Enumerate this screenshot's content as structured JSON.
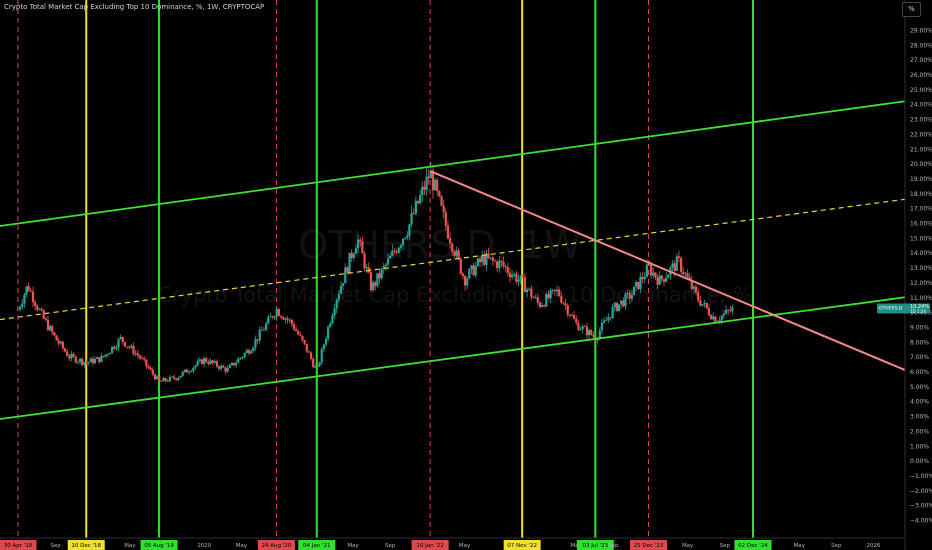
{
  "header": {
    "title": "Crypto Total Market Cap Excluding Top 10 Dominance, %, 1W, CRYPTOCAP",
    "scale_button": "%"
  },
  "watermark": {
    "symbol": "OTHERS.D, 1W",
    "description": "Crypto Total Market Cap Excluding Top 10 Dominance, %"
  },
  "colors": {
    "background": "#000000",
    "candle_up": "#26a69a",
    "candle_down": "#ef5350",
    "channel": "#3ee332",
    "mid_dashed": "#f2d43b",
    "down_trend": "#f08a8a",
    "vline_green": "#2fe02f",
    "vline_yellow": "#f2e12b",
    "vline_red_dashed": "#e0484f",
    "axis_text": "#b2b5be"
  },
  "price_axis": {
    "ticks": [
      "29.00%",
      "28.00%",
      "27.00%",
      "26.00%",
      "25.00%",
      "24.00%",
      "23.00%",
      "22.00%",
      "21.00%",
      "20.00%",
      "19.00%",
      "18.00%",
      "17.00%",
      "16.00%",
      "15.00%",
      "14.00%",
      "13.00%",
      "12.00%",
      "11.00%",
      "10.00%",
      "9.00%",
      "8.00%",
      "7.00%",
      "6.00%",
      "5.00%",
      "4.00%",
      "3.00%",
      "2.00%",
      "1.00%",
      "0.00%",
      "−1.00%",
      "−2.00%",
      "−3.00%",
      "−4.00%"
    ],
    "current_labels": [
      "OTHERS.D",
      "10.24%",
      "1D 1:24"
    ]
  },
  "time_axis": {
    "labels": [
      {
        "text": "30 Apr '18",
        "highlight": "red"
      },
      {
        "text": "Sep",
        "highlight": ""
      },
      {
        "text": "10 Dec '18",
        "highlight": "yellow"
      },
      {
        "text": "May",
        "highlight": ""
      },
      {
        "text": "05 Aug '19",
        "highlight": "green"
      },
      {
        "text": "2020",
        "highlight": ""
      },
      {
        "text": "May",
        "highlight": ""
      },
      {
        "text": "24 Aug '20",
        "highlight": "red"
      },
      {
        "text": "04 Jan '21",
        "highlight": "green"
      },
      {
        "text": "May",
        "highlight": ""
      },
      {
        "text": "Sep",
        "highlight": ""
      },
      {
        "text": "10 Jan '22",
        "highlight": "red"
      },
      {
        "text": "May",
        "highlight": ""
      },
      {
        "text": "07 Nov '22",
        "highlight": "yellow"
      },
      {
        "text": "May",
        "highlight": ""
      },
      {
        "text": "03 Jul '23",
        "highlight": "green"
      },
      {
        "text": "Sep",
        "highlight": ""
      },
      {
        "text": "25 Dec '23",
        "highlight": "red"
      },
      {
        "text": "May",
        "highlight": ""
      },
      {
        "text": "Sep",
        "highlight": ""
      },
      {
        "text": "02 Dec '24",
        "highlight": "green"
      },
      {
        "text": "May",
        "highlight": ""
      },
      {
        "text": "Sep",
        "highlight": ""
      },
      {
        "text": "2026",
        "highlight": ""
      }
    ]
  },
  "chart_data": {
    "type": "candlestick",
    "title": "Crypto Total Market Cap Excluding Top 10 Dominance, %, 1W, CRYPTOCAP",
    "ylim": [
      -4.5,
      30
    ],
    "y_unit": "%",
    "x_range": [
      "2018-04",
      "2026-03"
    ],
    "close_path": [
      [
        "2018-04-30",
        10.2
      ],
      [
        "2018-06-01",
        11.8
      ],
      [
        "2018-07-15",
        9.8
      ],
      [
        "2018-09-01",
        8.2
      ],
      [
        "2018-10-15",
        7.0
      ],
      [
        "2018-12-10",
        6.6
      ],
      [
        "2019-02-01",
        6.9
      ],
      [
        "2019-04-01",
        8.2
      ],
      [
        "2019-06-01",
        7.0
      ],
      [
        "2019-08-05",
        5.3
      ],
      [
        "2019-10-01",
        5.6
      ],
      [
        "2020-01-01",
        6.8
      ],
      [
        "2020-03-15",
        6.1
      ],
      [
        "2020-06-01",
        7.6
      ],
      [
        "2020-08-24",
        10.2
      ],
      [
        "2020-10-15",
        9.2
      ],
      [
        "2020-12-01",
        7.5
      ],
      [
        "2021-01-04",
        6.0
      ],
      [
        "2021-03-01",
        10.6
      ],
      [
        "2021-05-15",
        15.0
      ],
      [
        "2021-07-01",
        11.6
      ],
      [
        "2021-09-01",
        13.6
      ],
      [
        "2021-11-01",
        15.8
      ],
      [
        "2022-01-10",
        19.4
      ],
      [
        "2022-03-01",
        15.8
      ],
      [
        "2022-05-01",
        12.2
      ],
      [
        "2022-07-01",
        13.6
      ],
      [
        "2022-09-01",
        13.2
      ],
      [
        "2022-11-07",
        12.0
      ],
      [
        "2023-01-01",
        10.5
      ],
      [
        "2023-03-01",
        11.4
      ],
      [
        "2023-05-01",
        9.2
      ],
      [
        "2023-07-03",
        8.3
      ],
      [
        "2023-09-01",
        10.2
      ],
      [
        "2023-11-01",
        11.2
      ],
      [
        "2023-12-25",
        13.0
      ],
      [
        "2024-02-01",
        12.1
      ],
      [
        "2024-04-01",
        13.4
      ],
      [
        "2024-06-01",
        11.0
      ],
      [
        "2024-08-01",
        9.5
      ],
      [
        "2024-10-01",
        10.24
      ]
    ],
    "trend_lines": [
      {
        "kind": "channel_upper",
        "from": [
          "2018-04-01",
          15.8
        ],
        "to": [
          "2026-03-01",
          24.2
        ]
      },
      {
        "kind": "channel_mid_dashed",
        "from": [
          "2018-04-01",
          9.5
        ],
        "to": [
          "2026-03-01",
          17.6
        ]
      },
      {
        "kind": "channel_lower",
        "from": [
          "2018-04-01",
          2.8
        ],
        "to": [
          "2026-03-01",
          11.0
        ]
      },
      {
        "kind": "downtrend",
        "from": [
          "2022-01-10",
          19.5
        ],
        "to": [
          "2026-03-01",
          6.1
        ]
      }
    ],
    "vertical_markers": [
      {
        "date": "30 Apr '18",
        "style": "red_dashed"
      },
      {
        "date": "10 Dec '18",
        "style": "yellow"
      },
      {
        "date": "05 Aug '19",
        "style": "green"
      },
      {
        "date": "24 Aug '20",
        "style": "red_dashed"
      },
      {
        "date": "04 Jan '21",
        "style": "green"
      },
      {
        "date": "10 Jan '22",
        "style": "red_dashed"
      },
      {
        "date": "07 Nov '22",
        "style": "yellow"
      },
      {
        "date": "03 Jul '23",
        "style": "green"
      },
      {
        "date": "25 Dec '23",
        "style": "red_dashed"
      },
      {
        "date": "02 Dec '24",
        "style": "green"
      }
    ],
    "last_value": 10.24
  }
}
